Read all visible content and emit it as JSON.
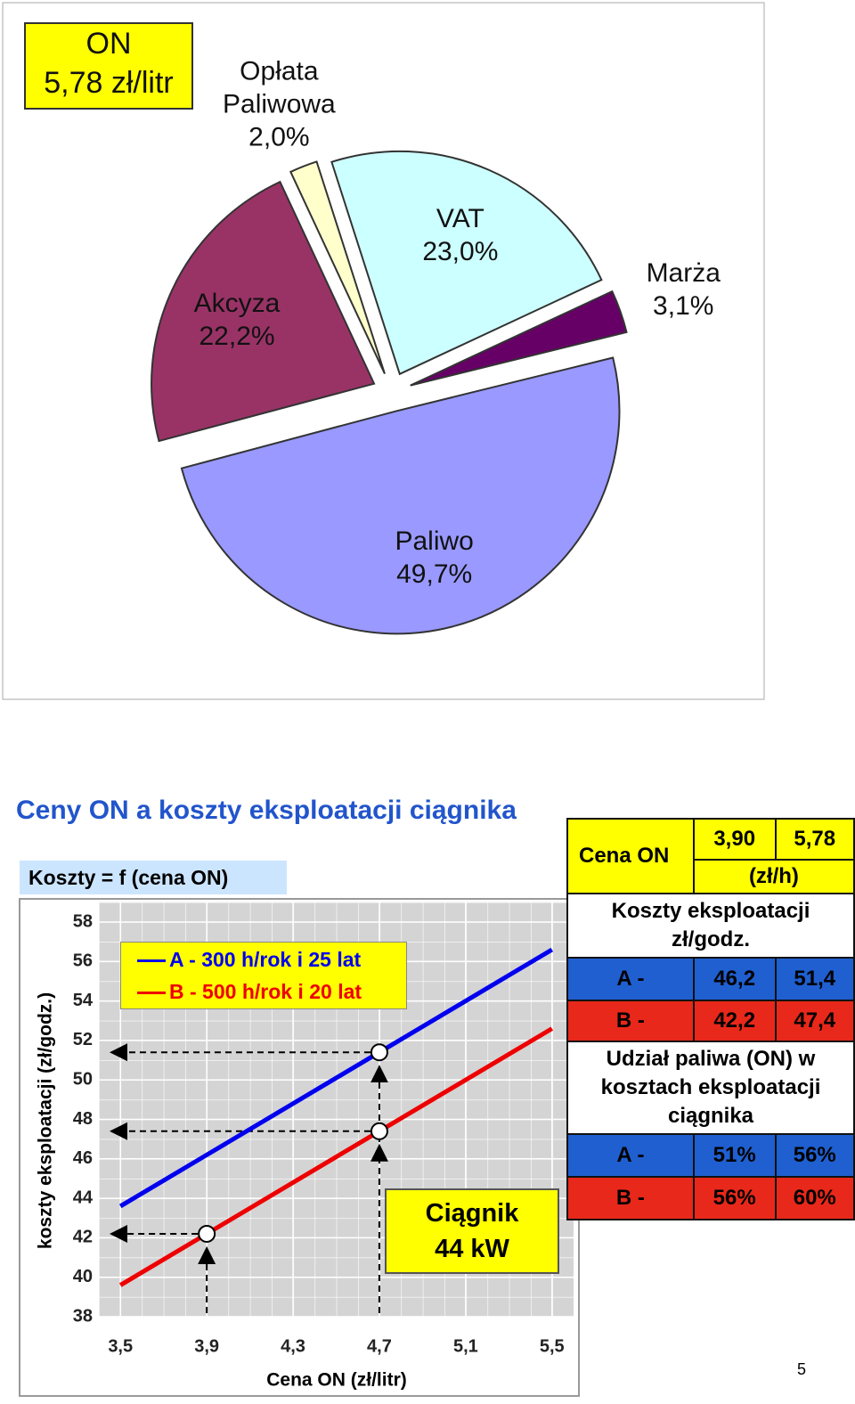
{
  "chart_data": [
    {
      "type": "pie",
      "label_box": [
        "ON",
        "5,78 zł/litr"
      ],
      "categories": [
        "Opłata Paliwowa",
        "VAT",
        "Marża",
        "Paliwo",
        "Akcyza"
      ],
      "values": [
        2.0,
        23.0,
        3.1,
        49.7,
        22.2
      ],
      "value_labels": [
        "2,0%",
        "23,0%",
        "3,1%",
        "49,7%",
        "22,2%"
      ],
      "colors": [
        "#ffffcc",
        "#ccffff",
        "#660066",
        "#9999ff",
        "#993366"
      ]
    },
    {
      "type": "line",
      "subtitle": "Koszty = f (cena ON)",
      "x_label": "Cena ON  (zł/litr)",
      "y_label": "koszty eksploatacji  (zł/godz.)",
      "x": [
        3.5,
        3.9,
        4.7,
        5.5
      ],
      "series": [
        {
          "name": "A - 300 h/rok i 25 lat",
          "color": "#0000ee",
          "values": [
            43.6,
            46.2,
            51.4,
            56.6
          ]
        },
        {
          "name": "B - 500 h/rok i 20 lat",
          "color": "#ee0000",
          "values": [
            39.6,
            42.2,
            47.4,
            52.6
          ]
        }
      ],
      "highlight_points": [
        {
          "x": 4.7,
          "y": 51.4
        },
        {
          "x": 4.7,
          "y": 47.4
        },
        {
          "x": 3.9,
          "y": 42.2
        }
      ],
      "annotation": "Ciągnik 44 kW",
      "xlim": [
        3.4,
        5.6
      ],
      "xticks": [
        {
          "value": 3.5,
          "label": "3,5"
        },
        {
          "value": 3.9,
          "label": "3,9"
        },
        {
          "value": 4.3,
          "label": "4,3"
        },
        {
          "value": 4.7,
          "label": "4,7"
        },
        {
          "value": 5.1,
          "label": "5,1"
        },
        {
          "value": 5.5,
          "label": "5,5"
        }
      ],
      "ylim": [
        38,
        59
      ],
      "yticks": [
        38,
        40,
        42,
        44,
        46,
        48,
        50,
        52,
        54,
        56,
        58
      ],
      "grid": true
    }
  ],
  "slide_title": "Ceny ON a koszty eksploatacji ciągnika",
  "table": {
    "rows": [
      [
        "Cena ON",
        "3,90",
        "5,78"
      ],
      [
        "(zł/h)"
      ],
      [
        "Koszty eksploatacji zł/godz."
      ],
      [
        "A -",
        "46,2",
        "51,4"
      ],
      [
        "B -",
        "42,2",
        "47,4"
      ],
      [
        "Udział paliwa (ON) w kosztach eksploatacji ciągnika"
      ],
      [
        "A -",
        "51%",
        "56%"
      ],
      [
        "B -",
        "56%",
        "60%"
      ]
    ]
  },
  "page_number": "5"
}
